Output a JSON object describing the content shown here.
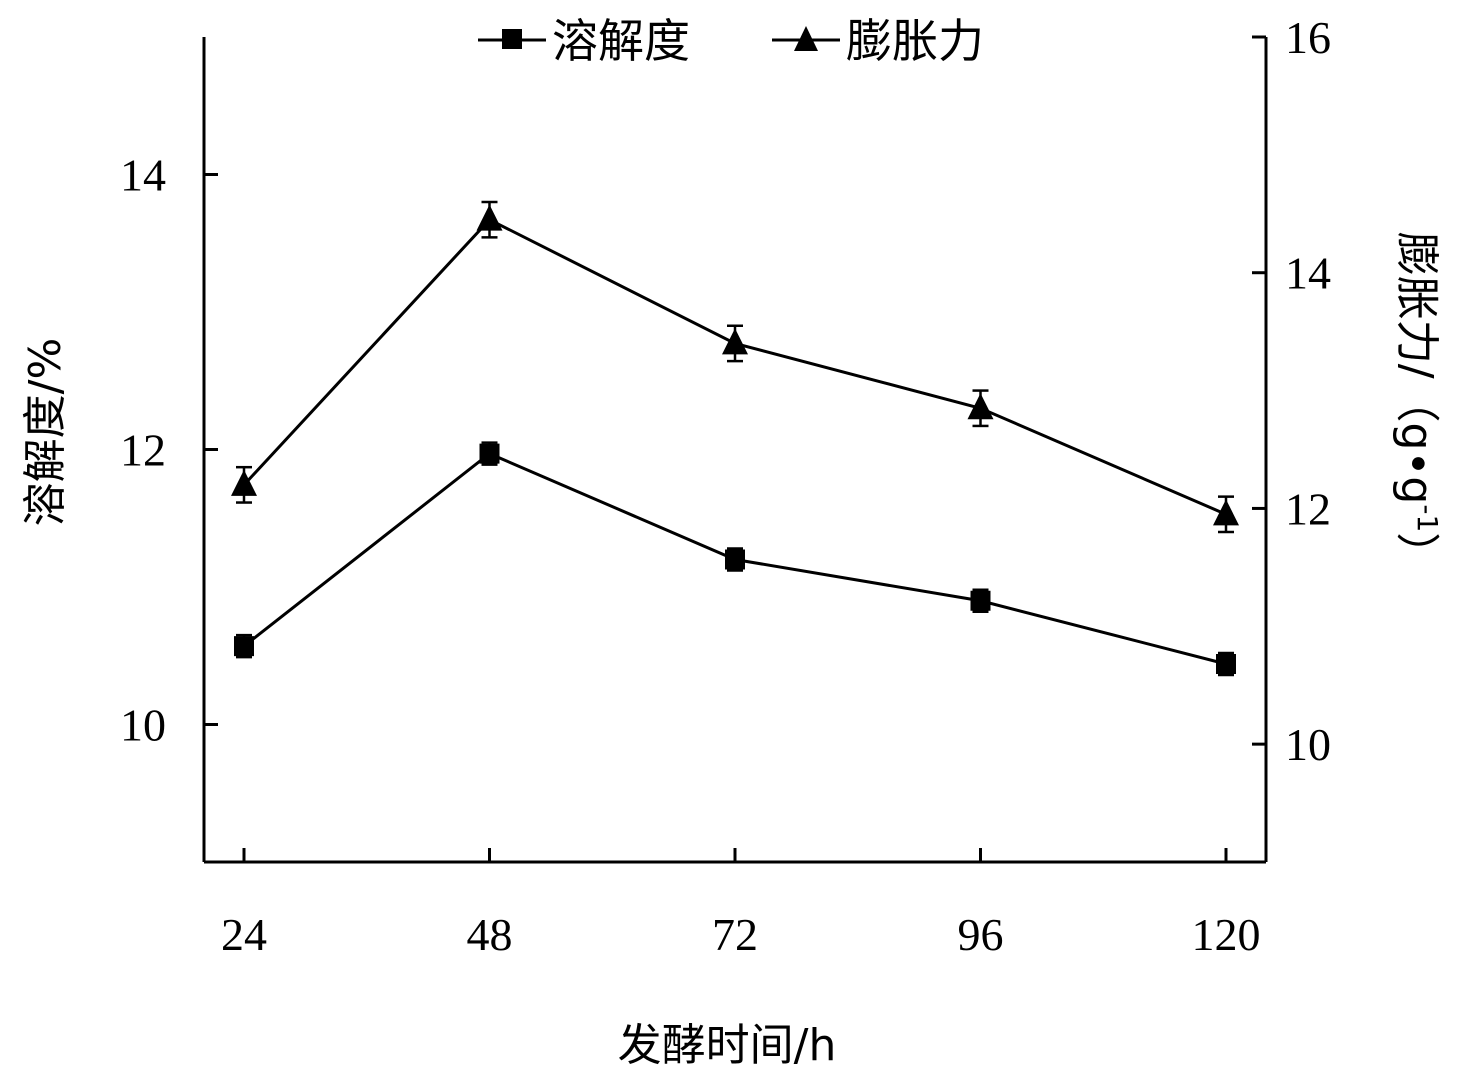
{
  "chart_data": {
    "type": "line",
    "x": [
      24,
      48,
      72,
      96,
      120
    ],
    "x_tick_labels": [
      "24",
      "48",
      "72",
      "96",
      "120"
    ],
    "xlabel": "发酵时间/h",
    "ylabel_left": "溶解度/%",
    "ylabel_right_prefix": "膨胀力/（g•g",
    "ylabel_right_sup": "-1",
    "ylabel_right_suffix": "）",
    "ylim_left": [
      9,
      15
    ],
    "ylim_right": [
      9,
      16
    ],
    "yticks_left": [
      10,
      12,
      14
    ],
    "yticks_right": [
      10,
      12,
      14,
      16
    ],
    "series": [
      {
        "name": "溶解度",
        "axis": "left",
        "marker": "square",
        "values": [
          10.57,
          11.97,
          11.2,
          10.9,
          10.44
        ],
        "errors": [
          0.08,
          0.08,
          0.08,
          0.08,
          0.08
        ]
      },
      {
        "name": "膨胀力",
        "axis": "right",
        "marker": "triangle",
        "values": [
          12.2,
          14.45,
          13.4,
          12.85,
          11.95
        ],
        "errors": [
          0.15,
          0.15,
          0.15,
          0.15,
          0.15
        ]
      }
    ],
    "legend_position": "top-center",
    "grid": false,
    "line_color": "#000000"
  }
}
